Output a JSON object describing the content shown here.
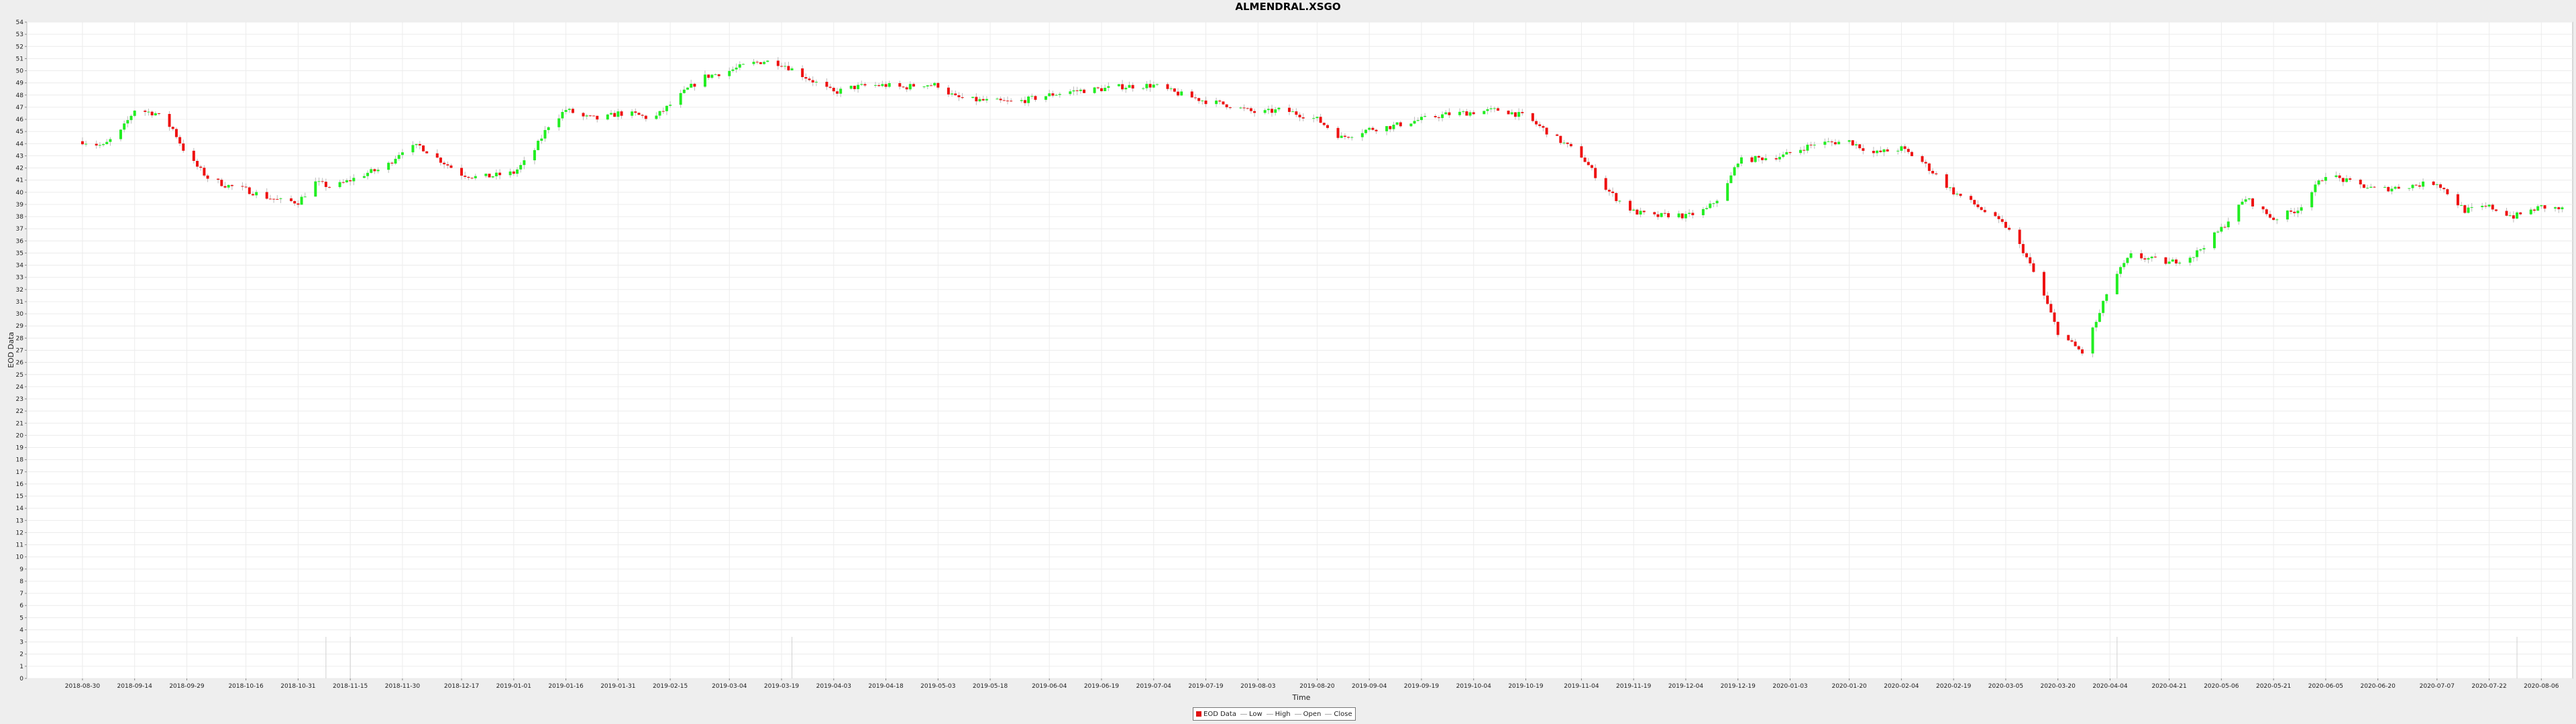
{
  "chart_data": {
    "type": "candlestick",
    "title": "ALMENDRAL.XSGO",
    "xlabel": "Time",
    "ylabel": "EOD Data",
    "ylim": [
      0,
      54
    ],
    "grid": true,
    "legend_position": "bottom-center",
    "x_tick_labels": [
      "2018-08-30",
      "2018-09-14",
      "2018-09-29",
      "2018-10-16",
      "2018-10-31",
      "2018-11-15",
      "2018-11-30",
      "2018-12-17",
      "2019-01-01",
      "2019-01-16",
      "2019-01-31",
      "2019-02-15",
      "2019-03-04",
      "2019-03-19",
      "2019-04-03",
      "2019-04-18",
      "2019-05-03",
      "2019-05-18",
      "2019-06-04",
      "2019-06-19",
      "2019-07-04",
      "2019-07-19",
      "2019-08-03",
      "2019-08-20",
      "2019-09-04",
      "2019-09-19",
      "2019-10-04",
      "2019-10-19",
      "2019-11-04",
      "2019-11-19",
      "2019-12-04",
      "2019-12-19",
      "2020-01-03",
      "2020-01-20",
      "2020-02-04",
      "2020-02-19",
      "2020-03-05",
      "2020-03-20",
      "2020-04-04",
      "2020-04-21",
      "2020-05-06",
      "2020-05-21",
      "2020-06-05",
      "2020-06-20",
      "2020-07-07",
      "2020-07-22",
      "2020-08-06"
    ],
    "legend": [
      {
        "name": "EOD Data",
        "color": "#e01010",
        "kind": "box"
      },
      {
        "name": "Low",
        "color": "#aaaaaa",
        "kind": "line"
      },
      {
        "name": "High",
        "color": "#aaaaaa",
        "kind": "line"
      },
      {
        "name": "Open",
        "color": "#aaaaaa",
        "kind": "line"
      },
      {
        "name": "Close",
        "color": "#aaaaaa",
        "kind": "line"
      }
    ],
    "up_color": "#22ee22",
    "down_color": "#ee1111",
    "close_series": [
      [
        "2018-08-30",
        44.2
      ],
      [
        "2018-09-05",
        43.8
      ],
      [
        "2018-09-10",
        45.0
      ],
      [
        "2018-09-14",
        46.8
      ],
      [
        "2018-09-20",
        46.5
      ],
      [
        "2018-09-25",
        45.2
      ],
      [
        "2018-09-29",
        43.0
      ],
      [
        "2018-10-05",
        41.2
      ],
      [
        "2018-10-10",
        40.6
      ],
      [
        "2018-10-16",
        40.2
      ],
      [
        "2018-10-22",
        39.6
      ],
      [
        "2018-10-26",
        39.3
      ],
      [
        "2018-10-31",
        39.2
      ],
      [
        "2018-11-05",
        40.8
      ],
      [
        "2018-11-10",
        40.4
      ],
      [
        "2018-11-15",
        41.0
      ],
      [
        "2018-11-20",
        41.6
      ],
      [
        "2018-11-25",
        42.0
      ],
      [
        "2018-11-30",
        43.5
      ],
      [
        "2018-12-05",
        43.8
      ],
      [
        "2018-12-10",
        42.8
      ],
      [
        "2018-12-17",
        41.5
      ],
      [
        "2018-12-22",
        41.2
      ],
      [
        "2018-12-27",
        41.4
      ],
      [
        "2019-01-01",
        41.6
      ],
      [
        "2019-01-06",
        43.0
      ],
      [
        "2019-01-11",
        45.5
      ],
      [
        "2019-01-16",
        46.8
      ],
      [
        "2019-01-21",
        46.2
      ],
      [
        "2019-01-26",
        46.0
      ],
      [
        "2019-01-31",
        46.5
      ],
      [
        "2019-02-05",
        46.4
      ],
      [
        "2019-02-10",
        46.0
      ],
      [
        "2019-02-15",
        47.2
      ],
      [
        "2019-02-20",
        48.5
      ],
      [
        "2019-02-25",
        49.5
      ],
      [
        "2019-03-04",
        50.0
      ],
      [
        "2019-03-09",
        50.5
      ],
      [
        "2019-03-14",
        50.8
      ],
      [
        "2019-03-19",
        50.6
      ],
      [
        "2019-03-24",
        49.8
      ],
      [
        "2019-03-29",
        49.0
      ],
      [
        "2019-04-03",
        48.2
      ],
      [
        "2019-04-08",
        48.6
      ],
      [
        "2019-04-13",
        48.8
      ],
      [
        "2019-04-18",
        48.8
      ],
      [
        "2019-04-23",
        48.6
      ],
      [
        "2019-04-28",
        48.9
      ],
      [
        "2019-05-03",
        48.8
      ],
      [
        "2019-05-08",
        47.8
      ],
      [
        "2019-05-13",
        47.6
      ],
      [
        "2019-05-18",
        47.5
      ],
      [
        "2019-05-25",
        47.4
      ],
      [
        "2019-06-04",
        48.0
      ],
      [
        "2019-06-10",
        48.3
      ],
      [
        "2019-06-19",
        48.5
      ],
      [
        "2019-06-25",
        48.7
      ],
      [
        "2019-07-04",
        48.8
      ],
      [
        "2019-07-10",
        48.2
      ],
      [
        "2019-07-19",
        47.5
      ],
      [
        "2019-07-25",
        47.2
      ],
      [
        "2019-08-03",
        46.5
      ],
      [
        "2019-08-10",
        46.8
      ],
      [
        "2019-08-20",
        46.0
      ],
      [
        "2019-08-27",
        44.5
      ],
      [
        "2019-09-04",
        45.2
      ],
      [
        "2019-09-10",
        45.4
      ],
      [
        "2019-09-19",
        46.0
      ],
      [
        "2019-09-26",
        46.4
      ],
      [
        "2019-10-04",
        46.6
      ],
      [
        "2019-10-12",
        46.8
      ],
      [
        "2019-10-19",
        46.2
      ],
      [
        "2019-10-26",
        44.8
      ],
      [
        "2019-11-04",
        43.0
      ],
      [
        "2019-11-10",
        40.6
      ],
      [
        "2019-11-14",
        39.5
      ],
      [
        "2019-11-19",
        38.4
      ],
      [
        "2019-11-25",
        38.0
      ],
      [
        "2019-12-01",
        38.2
      ],
      [
        "2019-12-04",
        38.0
      ],
      [
        "2019-12-10",
        38.6
      ],
      [
        "2019-12-15",
        40.0
      ],
      [
        "2019-12-19",
        42.6
      ],
      [
        "2020-01-01",
        43.0
      ],
      [
        "2020-01-10",
        44.0
      ],
      [
        "2020-01-20",
        44.2
      ],
      [
        "2020-01-27",
        43.2
      ],
      [
        "2020-02-04",
        43.6
      ],
      [
        "2020-02-10",
        42.5
      ],
      [
        "2020-02-19",
        40.0
      ],
      [
        "2020-02-25",
        39.0
      ],
      [
        "2020-03-05",
        37.2
      ],
      [
        "2020-03-10",
        35.2
      ],
      [
        "2020-03-15",
        32.2
      ],
      [
        "2020-03-20",
        28.5
      ],
      [
        "2020-03-27",
        26.8
      ],
      [
        "2020-04-01",
        30.0
      ],
      [
        "2020-04-04",
        32.5
      ],
      [
        "2020-04-10",
        34.8
      ],
      [
        "2020-04-21",
        34.2
      ],
      [
        "2020-04-28",
        34.8
      ],
      [
        "2020-05-06",
        37.0
      ],
      [
        "2020-05-13",
        39.5
      ],
      [
        "2020-05-21",
        37.8
      ],
      [
        "2020-05-28",
        38.6
      ],
      [
        "2020-06-05",
        41.5
      ],
      [
        "2020-06-12",
        40.8
      ],
      [
        "2020-06-20",
        40.2
      ],
      [
        "2020-06-28",
        40.5
      ],
      [
        "2020-07-07",
        40.8
      ],
      [
        "2020-07-15",
        38.5
      ],
      [
        "2020-07-22",
        38.8
      ],
      [
        "2020-07-29",
        38.0
      ],
      [
        "2020-08-06",
        38.8
      ],
      [
        "2020-08-12",
        38.6
      ]
    ]
  }
}
